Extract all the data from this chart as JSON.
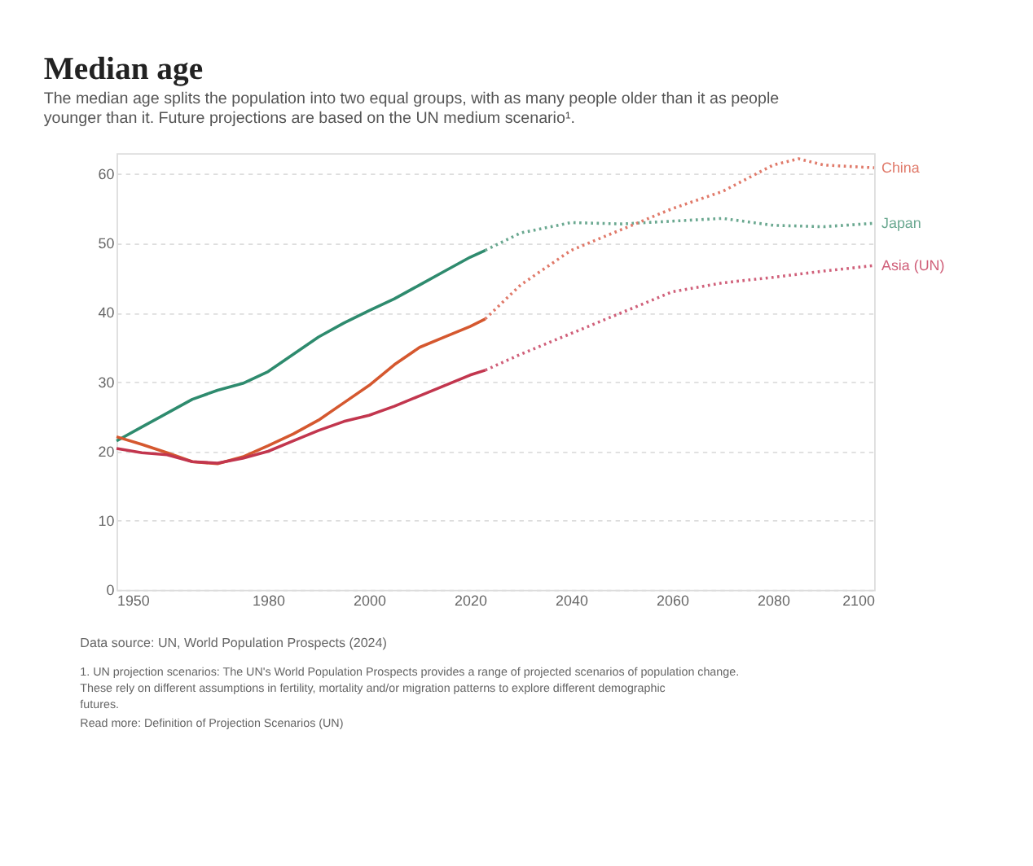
{
  "chart_data": {
    "type": "line",
    "title": "Median age",
    "subtitle": "The median age splits the population into two equal groups, with as many people older than it as people younger than it. Future projections are based on the UN medium scenario¹.",
    "xlim": [
      1950,
      2100
    ],
    "xticks": [
      1950,
      1980,
      2000,
      2020,
      2040,
      2060,
      2080,
      2100
    ],
    "ylim": [
      0,
      63
    ],
    "yticks": [
      0,
      10,
      20,
      30,
      40,
      50,
      60
    ],
    "grid": "y",
    "marker": "none",
    "series": [
      {
        "color": "#2e8b6e",
        "line_style": "solid",
        "x": [
          1950,
          1955,
          1960,
          1965,
          1970,
          1975,
          1980,
          1985,
          1990,
          1995,
          2000,
          2005,
          2010,
          2015,
          2020,
          2023
        ],
        "values": [
          21.5,
          23.5,
          25.5,
          27.5,
          28.8,
          29.8,
          31.5,
          34,
          36.5,
          38.5,
          40.3,
          42,
          44,
          46,
          48,
          49
        ]
      },
      {
        "name": "Japan",
        "color": "#6aa890",
        "line_style": "dotted",
        "x": [
          2023,
          2030,
          2040,
          2050,
          2060,
          2070,
          2080,
          2090,
          2100
        ],
        "values": [
          49,
          51.5,
          53,
          52.8,
          53.2,
          53.6,
          52.6,
          52.4,
          52.9
        ]
      },
      {
        "color": "#d5582f",
        "line_style": "solid",
        "x": [
          1950,
          1955,
          1960,
          1965,
          1970,
          1975,
          1980,
          1985,
          1990,
          1995,
          2000,
          2005,
          2010,
          2015,
          2020,
          2023
        ],
        "values": [
          22.1,
          21,
          19.8,
          18.5,
          18.2,
          19.2,
          20.8,
          22.5,
          24.5,
          27,
          29.5,
          32.5,
          35,
          36.5,
          38,
          39.1
        ]
      },
      {
        "name": "China",
        "color": "#e07a6a",
        "line_style": "dotted",
        "x": [
          2023,
          2030,
          2040,
          2050,
          2060,
          2070,
          2080,
          2085,
          2090,
          2100
        ],
        "values": [
          39.1,
          44,
          49,
          52,
          55,
          57.5,
          61.3,
          62.2,
          61.3,
          60.9
        ]
      },
      {
        "color": "#c2364e",
        "line_style": "solid",
        "x": [
          1950,
          1955,
          1960,
          1965,
          1970,
          1975,
          1980,
          1985,
          1990,
          1995,
          2000,
          2005,
          2010,
          2015,
          2020,
          2023
        ],
        "values": [
          20.4,
          19.8,
          19.5,
          18.5,
          18.3,
          19.0,
          20.0,
          21.5,
          23,
          24.3,
          25.2,
          26.5,
          28,
          29.5,
          31,
          31.7
        ]
      },
      {
        "name": "Asia (UN)",
        "color": "#d0607a",
        "line_style": "dotted",
        "x": [
          2023,
          2030,
          2040,
          2050,
          2060,
          2070,
          2080,
          2090,
          2100
        ],
        "values": [
          31.7,
          34,
          37,
          40,
          43,
          44.3,
          45.1,
          46,
          46.8
        ]
      }
    ],
    "annotations": [
      "Data source: UN, World Population Prospects (2024)",
      "1. UN projection scenarios: The UN's World Population Prospects provides a range of projected scenarios of population change. These rely on different assumptions in fertility, mortality and/or migration patterns to explore different demographic futures.",
      "Read more: Definition of Projection Scenarios (UN)"
    ]
  }
}
